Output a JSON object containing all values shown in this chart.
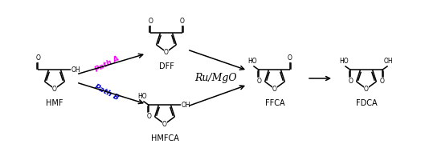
{
  "bg_color": "#ffffff",
  "figsize": [
    5.24,
    2.0
  ],
  "dpi": 100,
  "path_a_label": "Path A",
  "path_b_label": "Path B",
  "path_a_color": "#FF00FF",
  "path_b_color": "#0000CC",
  "catalyst_label": "Ru/MgO",
  "compound_labels": [
    "HMF",
    "DFF",
    "HMFCA",
    "FFCA",
    "FDCA"
  ],
  "font_size_compound": 7,
  "font_size_path": 6.5,
  "font_size_catalyst": 9,
  "font_size_atom": 5.5,
  "lw": 1.1
}
